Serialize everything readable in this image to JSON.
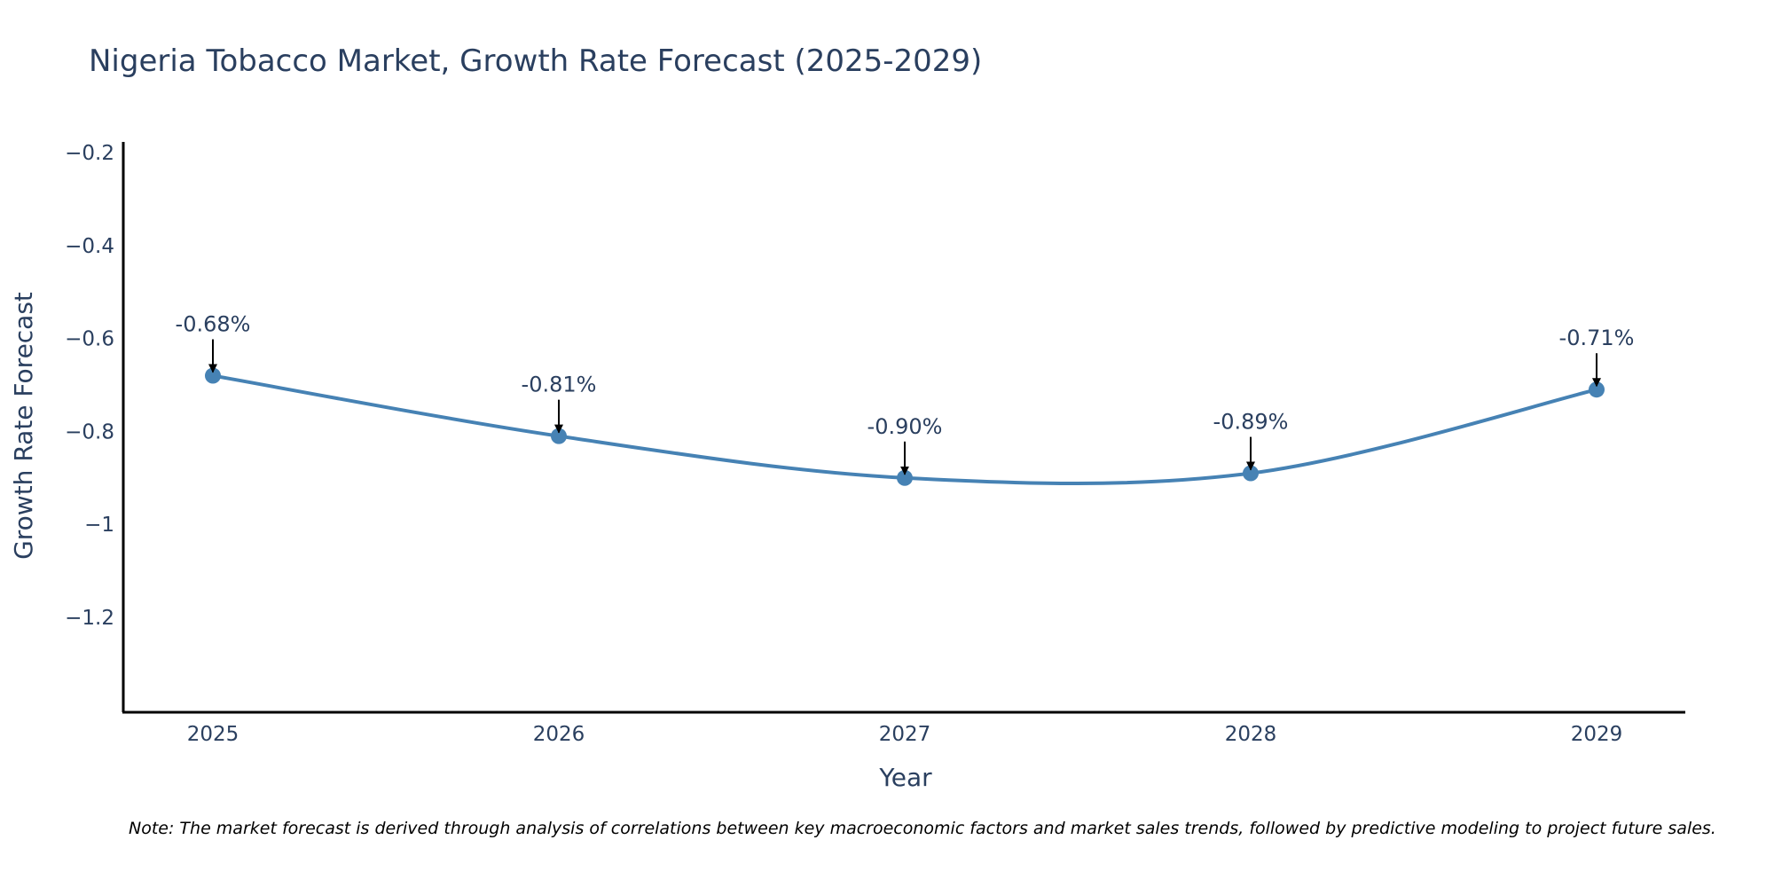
{
  "chart_data": {
    "type": "line",
    "title": "Nigeria Tobacco Market, Growth Rate Forecast (2025-2029)",
    "xlabel": "Year",
    "ylabel": "Growth Rate Forecast",
    "categories": [
      "2025",
      "2026",
      "2027",
      "2028",
      "2029"
    ],
    "series": [
      {
        "name": "Growth Rate Forecast",
        "values": [
          -0.68,
          -0.81,
          -0.9,
          -0.89,
          -0.71
        ],
        "labels": [
          "-0.68%",
          "-0.81%",
          "-0.90%",
          "-0.89%",
          "-0.71%"
        ]
      }
    ],
    "ylim": [
      -1.4,
      -0.18
    ],
    "yticks": [
      -0.2,
      -0.4,
      -0.6,
      -0.8,
      -1,
      -1.2
    ],
    "ytick_labels": [
      "−0.2",
      "−0.4",
      "−0.6",
      "−0.8",
      "−1",
      "−1.2"
    ],
    "line_shape": "spline",
    "grid": false,
    "colors": {
      "line": "#4682b4",
      "marker": "#4682b4",
      "arrow": "#000000",
      "axis": "#000000",
      "text": "#2a3f5f"
    },
    "note": "Note: The market forecast is derived through analysis of correlations between key macroeconomic factors and market sales trends, followed by predictive modeling to project future sales."
  }
}
